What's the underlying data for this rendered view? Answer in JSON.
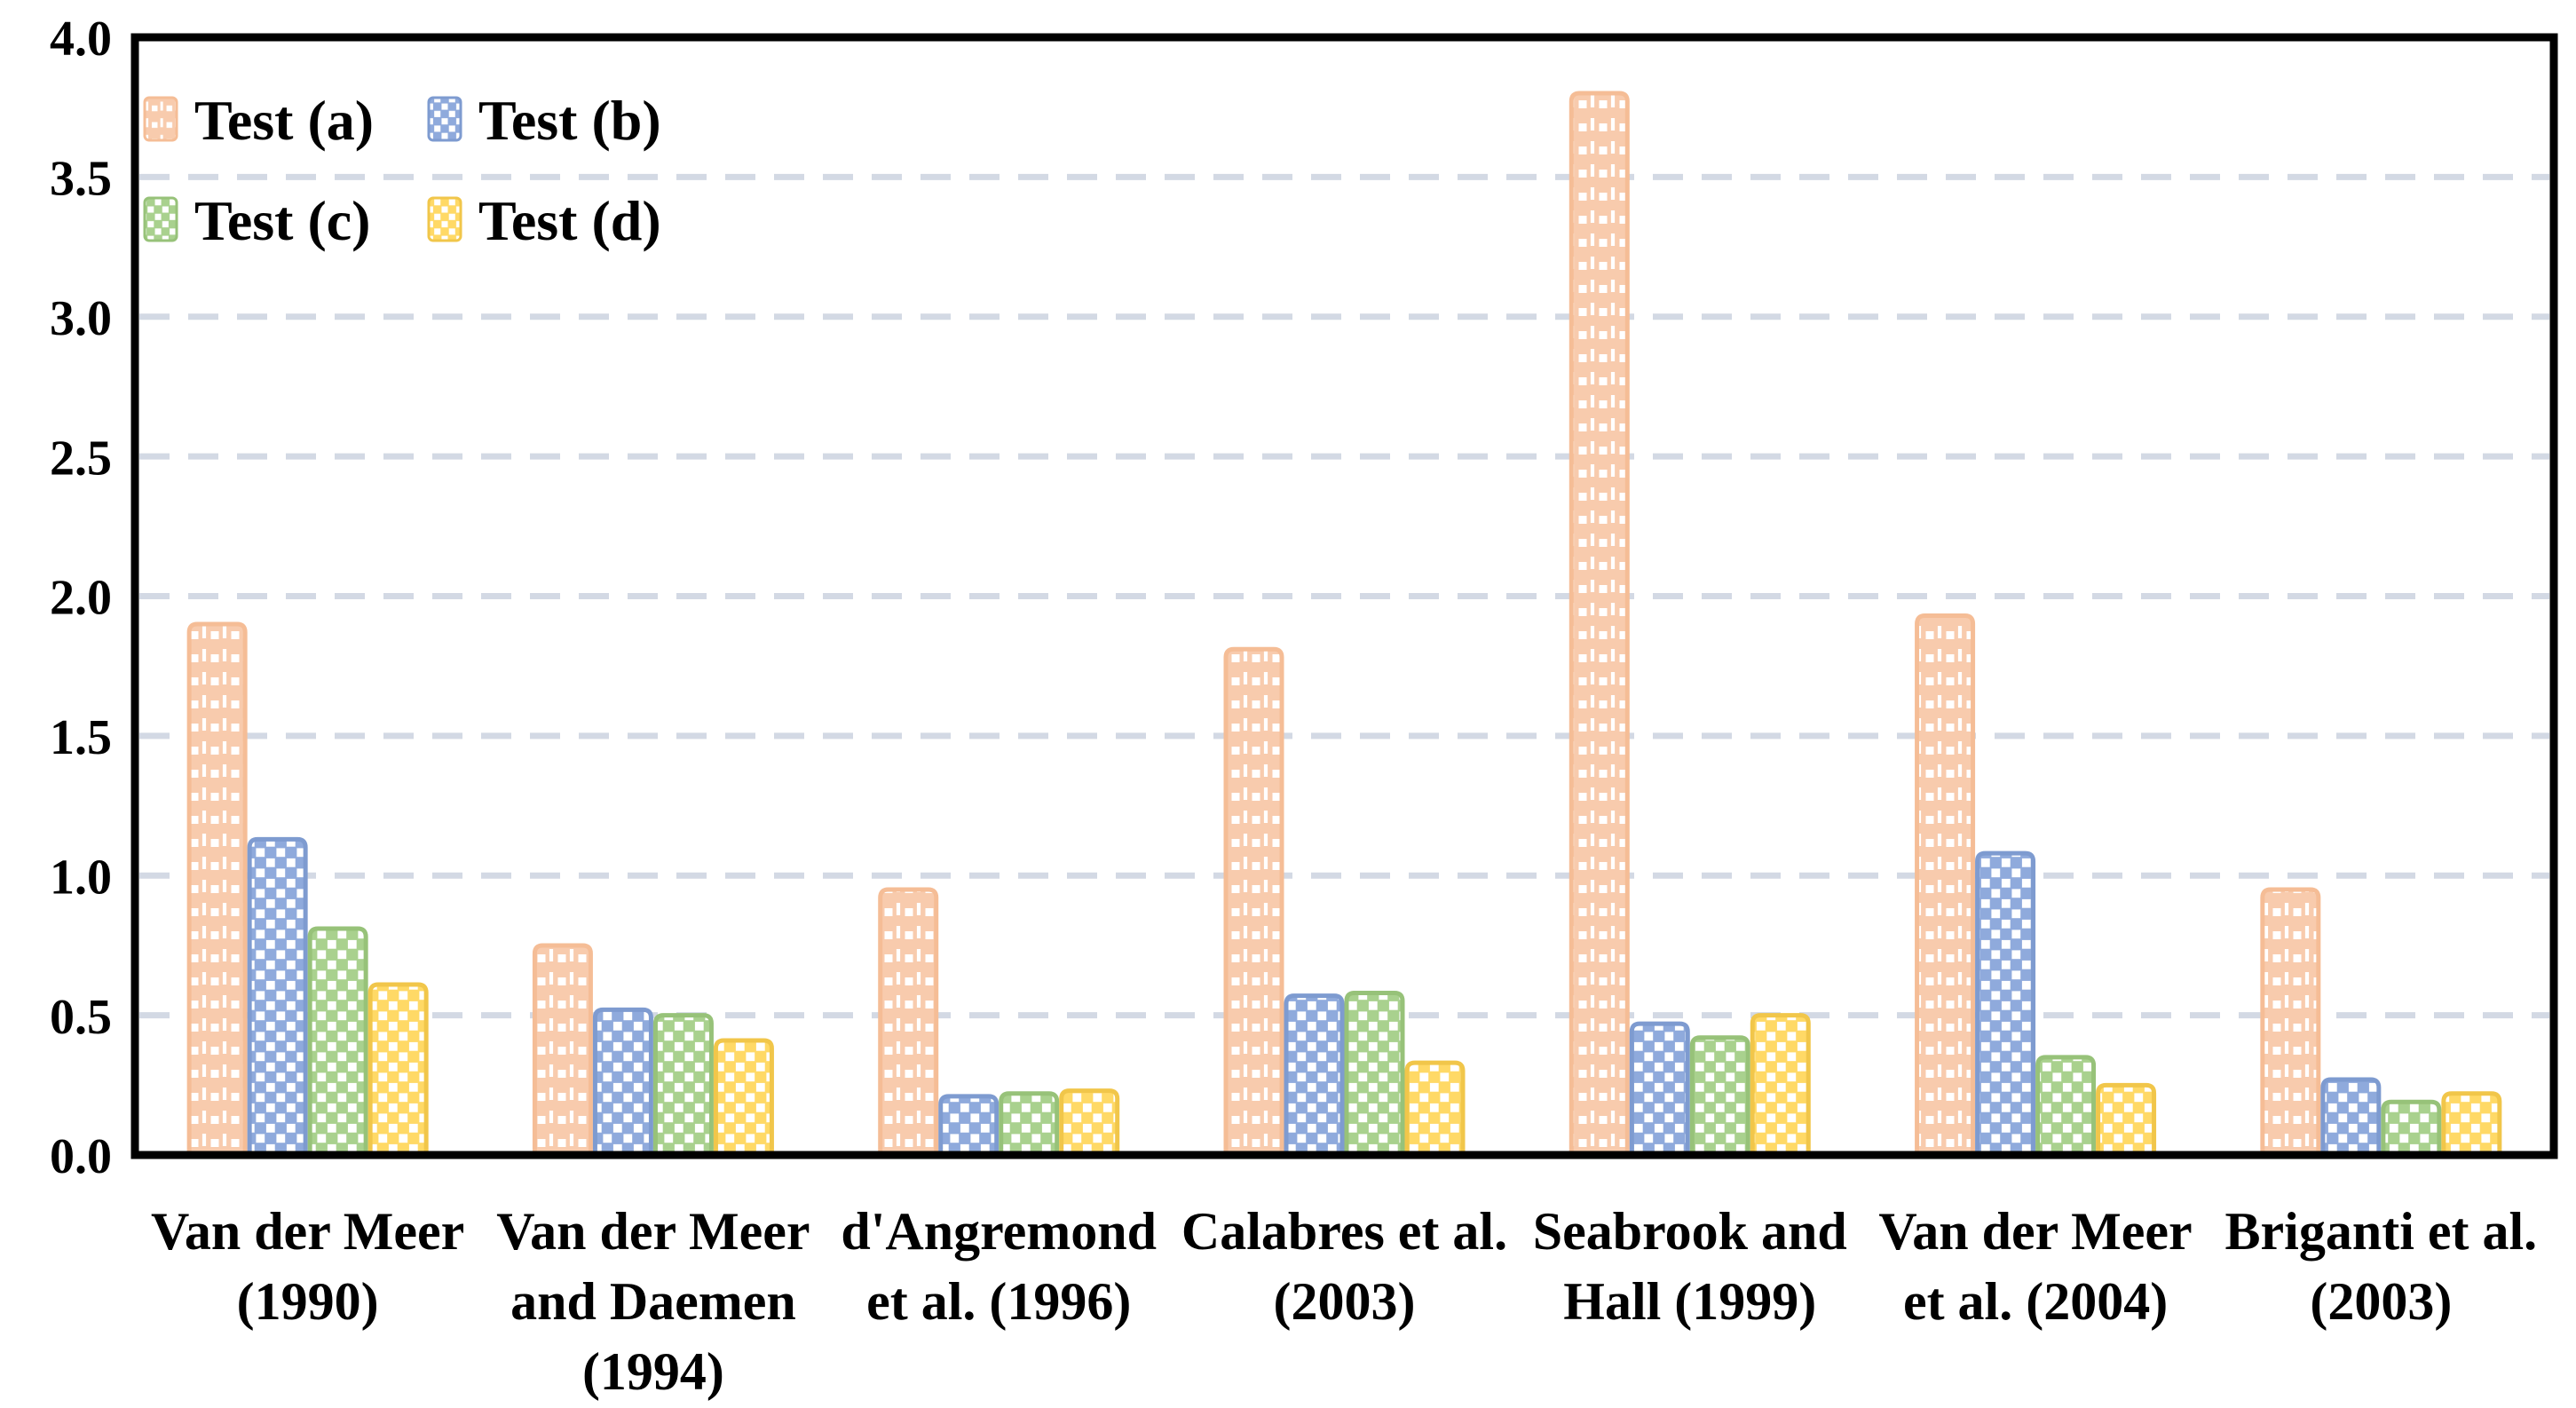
{
  "figure": {
    "background": "#ffffff",
    "grid_color": "#D3D9E4",
    "axis_color": "#000000"
  },
  "chart_data": {
    "type": "bar",
    "title": "",
    "xlabel": "",
    "ylabel": "",
    "ylim": [
      0.0,
      4.0
    ],
    "y_step": 0.5,
    "y_tick_labels": [
      "0.0",
      "0.5",
      "1.0",
      "1.5",
      "2.0",
      "2.5",
      "3.0",
      "3.5",
      "4.0"
    ],
    "grid": "dashed-horizontal",
    "legend_position": "top-left-inside",
    "categories": [
      {
        "label": "Van der Meer (1990)",
        "lines": [
          "Van der Meer",
          "(1990)"
        ]
      },
      {
        "label": "Van der Meer and Daemen (1994)",
        "lines": [
          "Van der Meer",
          "and Daemen",
          "(1994)"
        ]
      },
      {
        "label": "d'Angremond et al. (1996)",
        "lines": [
          "d'Angremond",
          "et al. (1996)"
        ]
      },
      {
        "label": "Calabres et al. (2003)",
        "lines": [
          "Calabres et al.",
          "(2003)"
        ]
      },
      {
        "label": "Seabrook and Hall (1999)",
        "lines": [
          "Seabrook and",
          "Hall (1999)"
        ]
      },
      {
        "label": "Van der Meer et al. (2004)",
        "lines": [
          "Van der Meer",
          "et al. (2004)"
        ]
      },
      {
        "label": "Briganti et al. (2003)",
        "lines": [
          "Briganti et al.",
          "(2003)"
        ]
      }
    ],
    "series": [
      {
        "name": "Test (a)",
        "pattern": "dotted-grid",
        "fill": "#F8CBAD",
        "stroke": "#F5BD96",
        "values": [
          1.9,
          0.75,
          0.95,
          1.81,
          3.8,
          1.93,
          0.95
        ]
      },
      {
        "name": "Test (b)",
        "pattern": "checker",
        "fill": "#8FAADC",
        "stroke": "#7E9BD0",
        "values": [
          1.13,
          0.52,
          0.21,
          0.57,
          0.47,
          1.08,
          0.27
        ]
      },
      {
        "name": "Test (c)",
        "pattern": "checker",
        "fill": "#A9D18E",
        "stroke": "#97C279",
        "values": [
          0.81,
          0.5,
          0.22,
          0.58,
          0.42,
          0.35,
          0.19
        ]
      },
      {
        "name": "Test (d)",
        "pattern": "checker",
        "fill": "#FFD966",
        "stroke": "#F1C64A",
        "values": [
          0.61,
          0.41,
          0.23,
          0.33,
          0.5,
          0.25,
          0.22
        ]
      }
    ]
  }
}
